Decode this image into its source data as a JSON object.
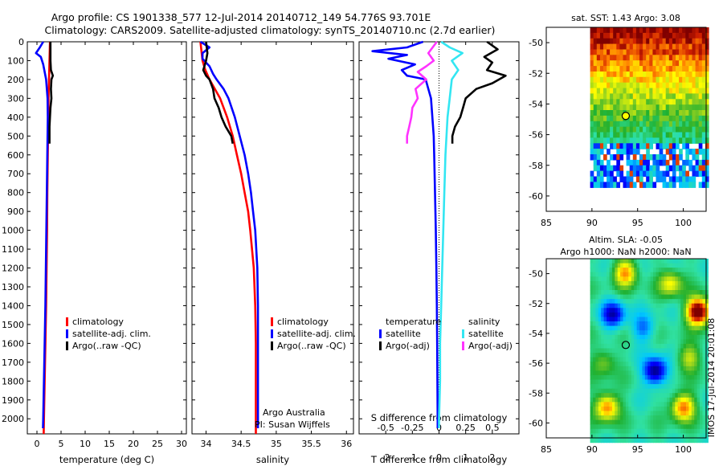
{
  "header": {
    "line1": "Argo profile: CS 1901338_577 12-Jul-2014 20140712_149 54.776S 93.701E",
    "line2": "Climatology: CARS2009. Satellite-adjusted climatology: synTS_20140710.nc (2.7d earlier)"
  },
  "colors": {
    "climatology": "#ff0000",
    "satellite": "#0000ff",
    "argo": "#000000",
    "sat_salinity": "#33e6f2",
    "argo_salinity": "#ff33ff"
  },
  "chart_data": [
    {
      "type": "line",
      "name": "temperature-profile",
      "xlabel": "temperature (deg C)",
      "ylabel": "",
      "xlim": [
        -2,
        31
      ],
      "ylim": [
        2080,
        0
      ],
      "xticks": [
        "0",
        "5",
        "10",
        "15",
        "20",
        "25",
        "30"
      ],
      "yticks": [
        "0",
        "100",
        "200",
        "300",
        "400",
        "500",
        "600",
        "700",
        "800",
        "900",
        "1000",
        "1100",
        "1200",
        "1300",
        "1400",
        "1500",
        "1600",
        "1700",
        "1800",
        "1900",
        "2000"
      ],
      "legend": [
        "climatology",
        "satellite-adj. clim.",
        "Argo(..raw -QC)"
      ],
      "series": [
        {
          "name": "climatology",
          "color": "#ff0000",
          "depth": [
            0,
            100,
            200,
            300,
            400,
            500,
            600,
            700,
            800,
            1000,
            1200,
            1400,
            1600,
            1800,
            2000,
            2080
          ],
          "values": [
            2.7,
            2.6,
            2.5,
            2.4,
            2.35,
            2.3,
            2.25,
            2.2,
            2.15,
            2.1,
            2.0,
            1.9,
            1.75,
            1.6,
            1.45,
            1.4
          ]
        },
        {
          "name": "satellite-adj. clim.",
          "color": "#0000ff",
          "depth": [
            0,
            30,
            60,
            80,
            120,
            200,
            300,
            400,
            500,
            600,
            800,
            1000,
            1200,
            1400,
            1600,
            1800,
            2000,
            2050
          ],
          "values": [
            1.3,
            0.6,
            -0.2,
            0.8,
            1.3,
            1.9,
            2.2,
            2.25,
            2.2,
            2.15,
            2.05,
            1.95,
            1.85,
            1.75,
            1.6,
            1.45,
            1.3,
            1.25
          ]
        },
        {
          "name": "Argo(..raw -QC)",
          "color": "#000000",
          "depth": [
            0,
            50,
            100,
            150,
            180,
            200,
            250,
            300,
            350,
            400,
            450,
            500,
            540
          ],
          "values": [
            2.8,
            2.8,
            2.8,
            2.9,
            3.3,
            3.0,
            2.9,
            3.0,
            2.8,
            2.7,
            2.6,
            2.6,
            2.6
          ]
        }
      ]
    },
    {
      "type": "line",
      "name": "salinity-profile",
      "xlabel": "salinity",
      "xlim": [
        33.8,
        36.1
      ],
      "ylim": [
        2080,
        0
      ],
      "xticks": [
        "34",
        "34.5",
        "35",
        "35.5",
        "36"
      ],
      "legend": [
        "climatology",
        "satellite-adj. clim.",
        "Argo(..raw -QC)"
      ],
      "annotation": [
        "Argo Australia",
        "PI: Susan Wijffels"
      ],
      "series": [
        {
          "name": "climatology",
          "color": "#ff0000",
          "depth": [
            0,
            100,
            150,
            200,
            300,
            400,
            500,
            600,
            700,
            800,
            900,
            1000,
            1200,
            1400,
            1600,
            1800,
            2000,
            2080
          ],
          "values": [
            33.92,
            33.95,
            33.99,
            34.05,
            34.2,
            34.3,
            34.38,
            34.44,
            34.5,
            34.55,
            34.6,
            34.63,
            34.68,
            34.7,
            34.71,
            34.71,
            34.71,
            34.71
          ]
        },
        {
          "name": "satellite-adj. clim.",
          "color": "#0000ff",
          "depth": [
            0,
            30,
            60,
            90,
            130,
            170,
            200,
            250,
            300,
            400,
            500,
            600,
            700,
            800,
            900,
            1000,
            1200,
            1400,
            1600,
            1800,
            2000,
            2050
          ],
          "values": [
            33.92,
            34.05,
            33.95,
            33.95,
            34.05,
            34.1,
            34.15,
            34.25,
            34.32,
            34.41,
            34.48,
            34.55,
            34.6,
            34.64,
            34.67,
            34.7,
            34.73,
            34.74,
            34.74,
            34.74,
            34.74,
            34.74
          ]
        },
        {
          "name": "Argo(..raw -QC)",
          "color": "#000000",
          "depth": [
            0,
            60,
            100,
            150,
            180,
            200,
            250,
            300,
            350,
            400,
            450,
            500,
            540
          ],
          "values": [
            34.0,
            34.02,
            34.0,
            33.96,
            34.0,
            34.05,
            34.1,
            34.12,
            34.18,
            34.22,
            34.28,
            34.36,
            34.38
          ]
        }
      ]
    },
    {
      "type": "line",
      "name": "difference-profile",
      "xlabel": "T difference from climatology",
      "xlabel_top": "S difference from climatology",
      "xlim": [
        -3,
        3
      ],
      "ylim": [
        2080,
        0
      ],
      "xticks": [
        "-2",
        "-1",
        "0",
        "1",
        "2"
      ],
      "sticks": [
        "-0.5",
        "-0.25",
        "0",
        "0.25",
        "0.5"
      ],
      "legend_headers": [
        "temperature",
        "salinity"
      ],
      "legend_left": [
        "satellite",
        "Argo(-adj)"
      ],
      "legend_right": [
        "satellite",
        "Argo(-adj)"
      ],
      "series": [
        {
          "name": "temperature satellite",
          "color": "#0000ff",
          "depth": [
            0,
            30,
            50,
            70,
            90,
            120,
            150,
            180,
            200,
            250,
            300,
            400,
            500,
            600,
            800,
            1000,
            1200,
            1400,
            1600,
            1800,
            2000,
            2050
          ],
          "values": [
            -0.6,
            -1.2,
            -2.5,
            -1.2,
            -1.9,
            -0.9,
            -1.4,
            -1.2,
            -0.5,
            -0.4,
            -0.3,
            -0.25,
            -0.2,
            -0.18,
            -0.15,
            -0.12,
            -0.1,
            -0.08,
            -0.07,
            -0.06,
            -0.05,
            -0.05
          ]
        },
        {
          "name": "temperature Argo(-adj)",
          "color": "#000000",
          "depth": [
            0,
            40,
            80,
            110,
            150,
            180,
            220,
            250,
            300,
            350,
            400,
            450,
            500,
            540
          ],
          "values": [
            1.8,
            2.2,
            1.7,
            2.0,
            1.8,
            2.5,
            2.0,
            1.4,
            1.0,
            0.9,
            0.8,
            0.6,
            0.5,
            0.5
          ]
        },
        {
          "name": "salinity satellite",
          "color": "#33e6f2",
          "depth": [
            0,
            30,
            60,
            100,
            150,
            200,
            300,
            400,
            500,
            600,
            800,
            1000,
            1200,
            1400,
            1600,
            1800,
            2000,
            2050
          ],
          "values": [
            0.02,
            0.1,
            0.22,
            0.12,
            0.18,
            0.12,
            0.1,
            0.08,
            0.07,
            0.06,
            0.05,
            0.04,
            0.03,
            0.02,
            0.01,
            0.01,
            0.0,
            0.0
          ]
        },
        {
          "name": "salinity Argo(-adj)",
          "color": "#ff33ff",
          "depth": [
            0,
            60,
            100,
            130,
            160,
            200,
            250,
            300,
            350,
            400,
            450,
            500,
            540
          ],
          "values": [
            -0.02,
            -0.1,
            -0.05,
            -0.12,
            -0.2,
            -0.12,
            -0.22,
            -0.2,
            -0.25,
            -0.26,
            -0.28,
            -0.3,
            -0.3
          ]
        }
      ]
    },
    {
      "type": "heatmap",
      "name": "sst-map",
      "title": "sat. SST: 1.43 Argo: 3.08",
      "xlim": [
        85,
        102.5
      ],
      "ylim": [
        -61,
        -49
      ],
      "xticks": [
        "85",
        "90",
        "95",
        "100"
      ],
      "yticks": [
        "-50",
        "-52",
        "-54",
        "-56",
        "-58",
        "-60"
      ],
      "marker": {
        "lon": 93.701,
        "lat": -54.776
      }
    },
    {
      "type": "heatmap",
      "name": "sla-map",
      "title_line1": "Altim. SLA: -0.05",
      "title_line2": "Argo h1000: NaN h2000: NaN",
      "side_label": "IMOS 17-Jul-2014 20:01:08",
      "xlim": [
        85,
        102.5
      ],
      "ylim": [
        -61,
        -49
      ],
      "xticks": [
        "85",
        "90",
        "95",
        "100"
      ],
      "yticks": [
        "-50",
        "-52",
        "-54",
        "-56",
        "-58",
        "-60"
      ],
      "marker": {
        "lon": 93.701,
        "lat": -54.776
      }
    }
  ]
}
